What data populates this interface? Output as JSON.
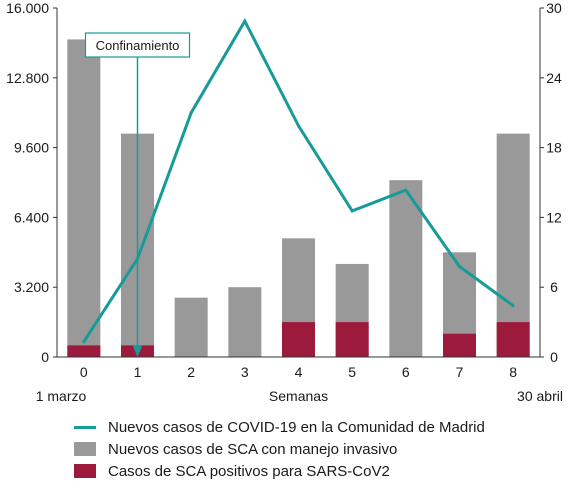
{
  "chart_data": {
    "type": "bar",
    "categories": [
      "0",
      "1",
      "2",
      "3",
      "4",
      "5",
      "6",
      "7",
      "8"
    ],
    "xlabel": "Semanas",
    "x_start_label": "1 marzo",
    "x_end_label": "30 abril",
    "left_axis": {
      "ylim": [
        0,
        16000
      ],
      "ticks": [
        0,
        3200,
        6400,
        9600,
        12800,
        16000
      ],
      "tick_labels": [
        "0",
        "3.200",
        "6.400",
        "9.600",
        "12.800",
        "16.000"
      ]
    },
    "right_axis": {
      "ylim": [
        0,
        30
      ],
      "ticks": [
        0,
        6,
        12,
        18,
        24,
        30
      ],
      "tick_labels": [
        "0",
        "6",
        "12",
        "18",
        "24",
        "30"
      ]
    },
    "series": [
      {
        "name": "Nuevos casos de COVID-19 en la Comunidad de Madrid",
        "type": "line",
        "axis": "left",
        "color": "#179b96",
        "values": [
          700,
          4500,
          11200,
          15400,
          10600,
          6700,
          7650,
          4150,
          2350
        ]
      },
      {
        "name": "Nuevos casos de SCA con manejo invasivo",
        "type": "bar",
        "axis": "right",
        "color": "#999999",
        "values": [
          27.3,
          19.2,
          5.1,
          6.0,
          10.2,
          8.0,
          15.2,
          9.0,
          19.2
        ]
      },
      {
        "name": "Casos de SCA positivos para SARS-CoV2",
        "type": "bar",
        "axis": "right",
        "color": "#9c1b3c",
        "values": [
          1.0,
          1.0,
          0,
          0,
          3.0,
          3.0,
          0,
          2.0,
          3.0
        ]
      }
    ],
    "annotation": {
      "label": "Confinamiento",
      "x_position": 1.5,
      "color": "#179b96"
    },
    "grid": false
  }
}
